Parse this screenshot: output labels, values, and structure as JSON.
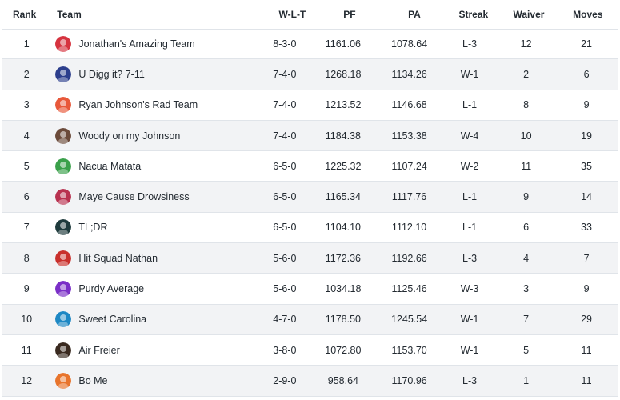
{
  "headers": {
    "rank": "Rank",
    "team": "Team",
    "wlt": "W-L-T",
    "pf": "PF",
    "pa": "PA",
    "streak": "Streak",
    "waiver": "Waiver",
    "moves": "Moves"
  },
  "teams": [
    {
      "rank": "1",
      "name": "Jonathan's Amazing Team",
      "wlt": "8-3-0",
      "pf": "1161.06",
      "pa": "1078.64",
      "streak": "L-3",
      "waiver": "12",
      "moves": "21",
      "avatar_icon": "swirl-logo-icon",
      "color": "#d6333f"
    },
    {
      "rank": "2",
      "name": "U Digg it? 7-11",
      "wlt": "7-4-0",
      "pf": "1268.18",
      "pa": "1134.26",
      "streak": "W-1",
      "waiver": "2",
      "moves": "6",
      "avatar_icon": "football-player-icon",
      "color": "#2c3e8c"
    },
    {
      "rank": "3",
      "name": "Ryan Johnson's Rad Team",
      "wlt": "7-4-0",
      "pf": "1213.52",
      "pa": "1146.68",
      "streak": "L-1",
      "waiver": "8",
      "moves": "9",
      "avatar_icon": "foam-finger-icon",
      "color": "#e8583a"
    },
    {
      "rank": "4",
      "name": "Woody on my Johnson",
      "wlt": "7-4-0",
      "pf": "1184.38",
      "pa": "1153.38",
      "streak": "W-4",
      "waiver": "10",
      "moves": "19",
      "avatar_icon": "person-photo-icon",
      "color": "#6b4a3a"
    },
    {
      "rank": "5",
      "name": "Nacua Matata",
      "wlt": "6-5-0",
      "pf": "1225.32",
      "pa": "1107.24",
      "streak": "W-2",
      "waiver": "11",
      "moves": "35",
      "avatar_icon": "cartoon-character-icon",
      "color": "#3aa04a"
    },
    {
      "rank": "6",
      "name": "Maye Cause Drowsiness",
      "wlt": "6-5-0",
      "pf": "1165.34",
      "pa": "1117.76",
      "streak": "L-1",
      "waiver": "9",
      "moves": "14",
      "avatar_icon": "flying-elvis-icon",
      "color": "#b83250"
    },
    {
      "rank": "7",
      "name": "TL;DR",
      "wlt": "6-5-0",
      "pf": "1104.10",
      "pa": "1112.10",
      "streak": "L-1",
      "waiver": "6",
      "moves": "33",
      "avatar_icon": "jaguar-icon",
      "color": "#1f3b3d"
    },
    {
      "rank": "8",
      "name": "Hit Squad Nathan",
      "wlt": "5-6-0",
      "pf": "1172.36",
      "pa": "1192.66",
      "streak": "L-3",
      "waiver": "4",
      "moves": "7",
      "avatar_icon": "helmet-icon",
      "color": "#c9302c"
    },
    {
      "rank": "9",
      "name": "Purdy Average",
      "wlt": "5-6-0",
      "pf": "1034.18",
      "pa": "1125.46",
      "streak": "W-3",
      "waiver": "3",
      "moves": "9",
      "avatar_icon": "purple-logo-icon",
      "color": "#7a2fc7"
    },
    {
      "rank": "10",
      "name": "Sweet Carolina",
      "wlt": "4-7-0",
      "pf": "1178.50",
      "pa": "1245.54",
      "streak": "W-1",
      "waiver": "7",
      "moves": "29",
      "avatar_icon": "panther-icon",
      "color": "#1e88c4"
    },
    {
      "rank": "11",
      "name": "Air Freier",
      "wlt": "3-8-0",
      "pf": "1072.80",
      "pa": "1153.70",
      "streak": "W-1",
      "waiver": "5",
      "moves": "11",
      "avatar_icon": "player-photo-icon",
      "color": "#3a2a20"
    },
    {
      "rank": "12",
      "name": "Bo Me",
      "wlt": "2-9-0",
      "pf": "958.64",
      "pa": "1170.96",
      "streak": "L-3",
      "waiver": "1",
      "moves": "11",
      "avatar_icon": "orange-logo-icon",
      "color": "#e8742c"
    }
  ]
}
